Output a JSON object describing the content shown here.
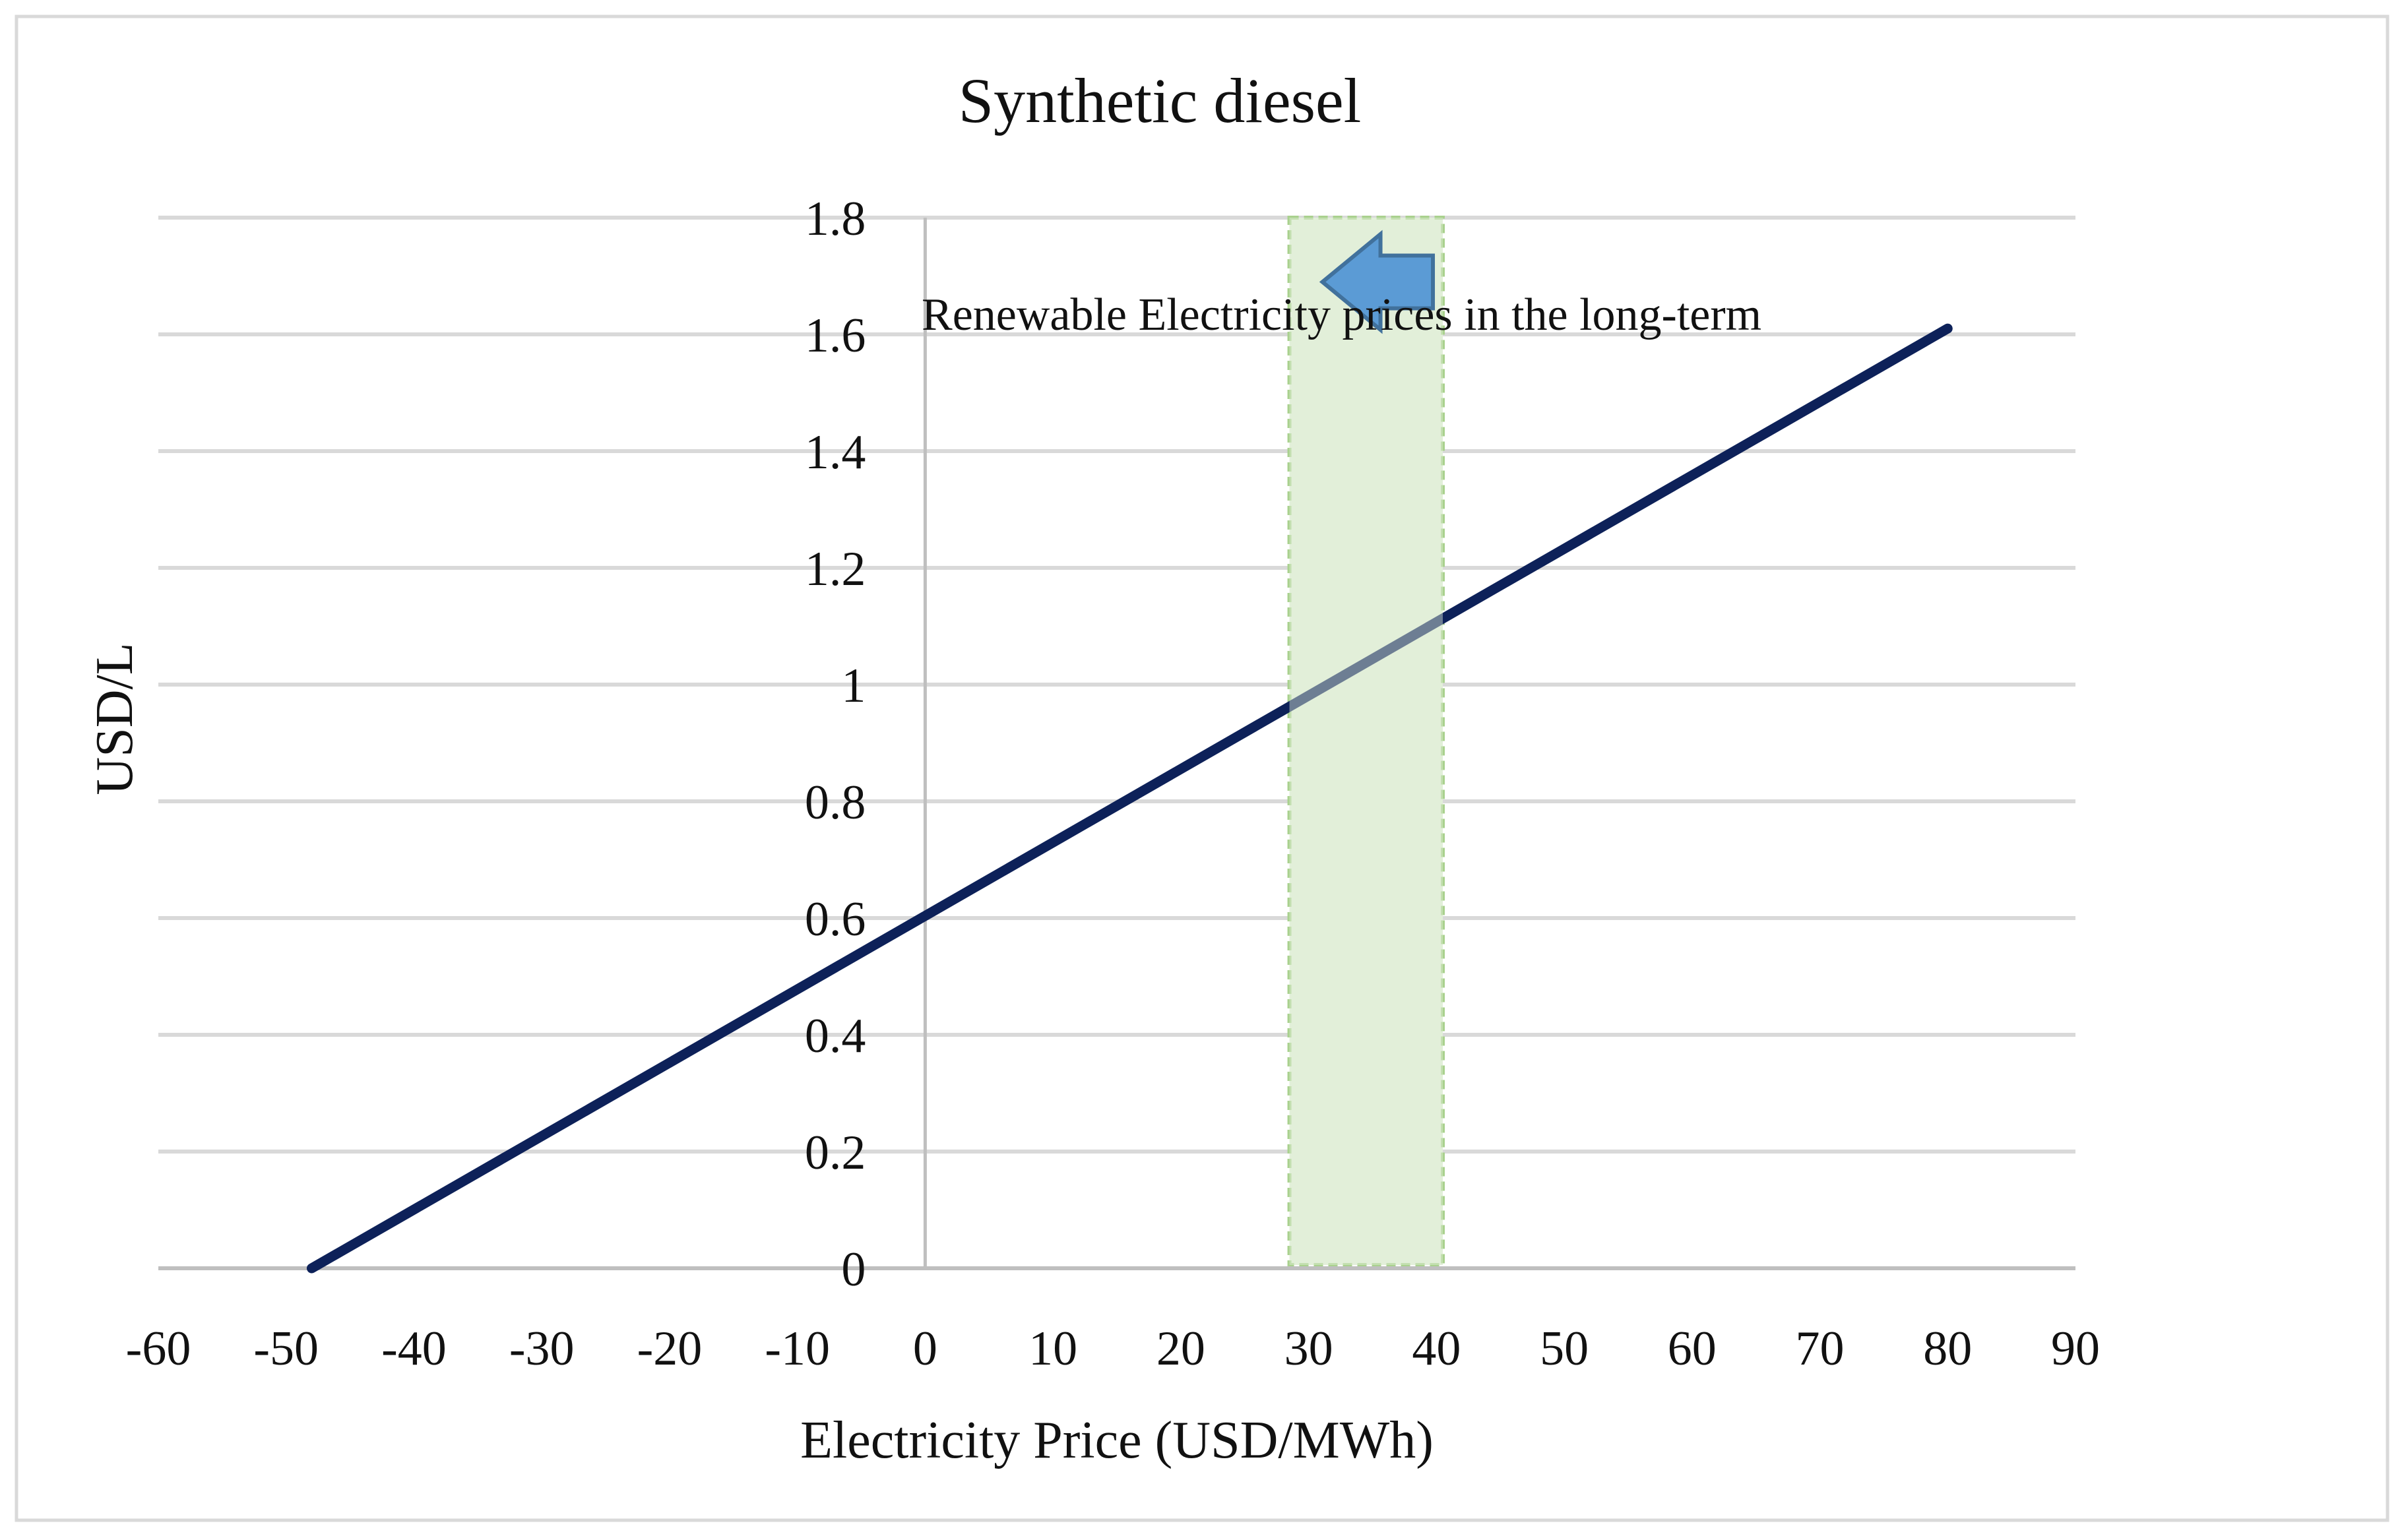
{
  "chart_data": {
    "type": "line",
    "title": "Synthetic diesel",
    "xlabel": "Electricity Price (USD/MWh)",
    "ylabel": "USD/L",
    "xlim": [
      -60,
      90
    ],
    "ylim": [
      0,
      1.8
    ],
    "x_ticks": [
      -60,
      -50,
      -40,
      -30,
      -20,
      -10,
      0,
      10,
      20,
      30,
      40,
      50,
      60,
      70,
      80,
      90
    ],
    "x_tick_labels": [
      "-60",
      "-50",
      "-40",
      "-30",
      "-20",
      "-10",
      "0",
      "10",
      "20",
      "30",
      "40",
      "50",
      "60",
      "70",
      "80",
      "90"
    ],
    "y_ticks": [
      0,
      0.2,
      0.4,
      0.6,
      0.8,
      1,
      1.2,
      1.4,
      1.6,
      1.8
    ],
    "y_tick_labels": [
      "0",
      "0.2",
      "0.4",
      "0.6",
      "0.8",
      "1",
      "1.2",
      "1.4",
      "1.6",
      "1.8"
    ],
    "grid": "horizontal",
    "series": [
      {
        "name": "Synthetic diesel",
        "x": [
          -48,
          80
        ],
        "y": [
          0,
          1.61
        ],
        "color": "#0d2159"
      }
    ],
    "highlight_band": {
      "x_range": [
        28.5,
        40.5
      ],
      "fill": "#e2efd9",
      "stroke": "#a9d18e"
    },
    "annotation": {
      "text": "Renewable Electricity prices in the long-term",
      "arrow_color": "#5b9bd5",
      "arrow_direction": "left"
    }
  }
}
